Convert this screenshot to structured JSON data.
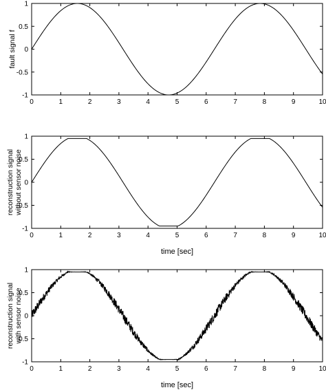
{
  "chart_data": [
    {
      "type": "line",
      "title": "",
      "xlabel": "",
      "ylabel": [
        "fault signal f"
      ],
      "xlim": [
        0,
        10
      ],
      "ylim": [
        -1,
        1
      ],
      "xticks": [
        "0",
        "1",
        "2",
        "3",
        "4",
        "5",
        "6",
        "7",
        "8",
        "9",
        "10"
      ],
      "yticks": [
        "1",
        "0.5",
        "0",
        "-0.5",
        "-1"
      ],
      "grid": false,
      "legend": "none",
      "line_color": "#000000",
      "signal": "sin(t)",
      "series": [
        {
          "x": [
            0,
            0.5,
            1,
            1.5,
            2,
            2.5,
            3,
            3.5,
            4,
            4.5,
            5,
            5.5,
            6,
            6.5,
            7,
            7.5,
            8,
            8.5,
            9,
            9.5,
            10
          ],
          "y": [
            0,
            0.48,
            0.84,
            1.0,
            0.91,
            0.6,
            0.14,
            -0.35,
            -0.76,
            -0.98,
            -0.96,
            -0.71,
            -0.28,
            0.22,
            0.66,
            0.94,
            0.99,
            0.8,
            0.41,
            -0.08,
            -0.54
          ]
        }
      ]
    },
    {
      "type": "line",
      "title": "",
      "xlabel": "time [sec]",
      "ylabel": [
        "reconstruction signal",
        "without sensor noise"
      ],
      "xlim": [
        0,
        10
      ],
      "ylim": [
        -1,
        1
      ],
      "xticks": [
        "0",
        "1",
        "2",
        "3",
        "4",
        "5",
        "6",
        "7",
        "8",
        "9",
        "10"
      ],
      "yticks": [
        "1",
        "0.5",
        "0",
        "-0.5",
        "-1"
      ],
      "grid": false,
      "legend": "none",
      "line_color": "#000000",
      "signal": "saturated sin(t), peak 0.95",
      "series": [
        {
          "x": [
            0,
            0.5,
            1,
            1.5,
            2,
            2.5,
            3,
            3.5,
            4,
            4.5,
            5,
            5.5,
            6,
            6.5,
            7,
            7.5,
            8,
            8.5,
            9,
            9.5,
            10
          ],
          "y": [
            0,
            0.48,
            0.84,
            0.95,
            0.91,
            0.6,
            0.14,
            -0.35,
            -0.76,
            -0.95,
            -0.95,
            -0.71,
            -0.28,
            0.22,
            0.66,
            0.94,
            0.95,
            0.8,
            0.41,
            -0.08,
            -0.54
          ]
        }
      ]
    },
    {
      "type": "line",
      "title": "",
      "xlabel": "time [sec]",
      "ylabel": [
        "reconstruction signal",
        "with sensor noise"
      ],
      "xlim": [
        0,
        10
      ],
      "ylim": [
        -1,
        1
      ],
      "xticks": [
        "0",
        "1",
        "2",
        "3",
        "4",
        "5",
        "6",
        "7",
        "8",
        "9",
        "10"
      ],
      "yticks": [
        "1",
        "0.5",
        "0",
        "-0.5",
        "-1"
      ],
      "grid": false,
      "legend": "none",
      "line_color": "#000000",
      "signal": "saturated sin(t), peak 0.95, with high-frequency noise on the steep segments",
      "series": [
        {
          "x": [
            0,
            0.5,
            1,
            1.5,
            2,
            2.5,
            3,
            3.5,
            4,
            4.5,
            5,
            5.5,
            6,
            6.5,
            7,
            7.5,
            8,
            8.5,
            9,
            9.5,
            10
          ],
          "y": [
            0,
            0.48,
            0.84,
            0.95,
            0.91,
            0.6,
            0.14,
            -0.35,
            -0.76,
            -0.95,
            -0.95,
            -0.71,
            -0.28,
            0.22,
            0.66,
            0.94,
            0.95,
            0.8,
            0.41,
            -0.08,
            -0.54
          ]
        }
      ]
    }
  ]
}
